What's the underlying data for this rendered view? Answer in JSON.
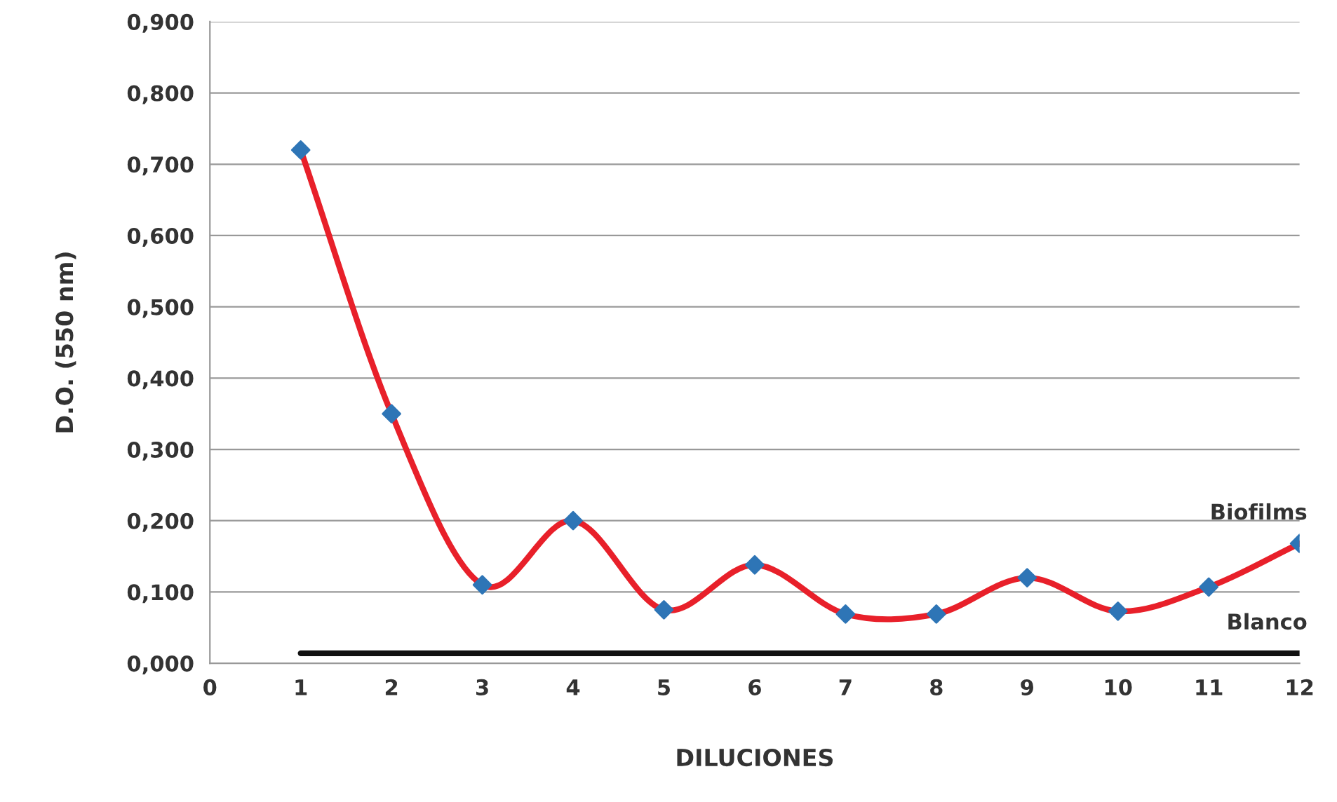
{
  "chart_data": {
    "type": "line",
    "xlabel": "DILUCIONES",
    "ylabel": "D.O. (550 nm)",
    "x": [
      1,
      2,
      3,
      4,
      5,
      6,
      7,
      8,
      9,
      10,
      11,
      12
    ],
    "series": [
      {
        "name": "Biofilms",
        "color": "#e8202a",
        "marker": "diamond",
        "colors": [
          "#2e75b6",
          "#2e75b6",
          "#2e75b6",
          "#2e75b6",
          "#2e75b6",
          "#2e75b6",
          "#2e75b6",
          "#2e75b6",
          "#2e75b6",
          "#2e75b6",
          "#2e75b6",
          "#2e75b6"
        ],
        "values": [
          0.72,
          0.35,
          0.11,
          0.2,
          0.075,
          0.138,
          0.069,
          0.069,
          0.12,
          0.073,
          0.107,
          0.168
        ]
      },
      {
        "name": "Blanco",
        "color": "#111111",
        "marker": "none",
        "x": [
          1,
          12
        ],
        "values": [
          0.014,
          0.014
        ]
      }
    ],
    "xlim": [
      0,
      12
    ],
    "xticks": [
      0,
      1,
      2,
      3,
      4,
      5,
      6,
      7,
      8,
      9,
      10,
      11,
      12
    ],
    "ylim": [
      0,
      0.9
    ],
    "yticks": [
      {
        "value": 0,
        "label": "0,000"
      },
      {
        "value": 0.1,
        "label": "0,100"
      },
      {
        "value": 0.2,
        "label": "0,200"
      },
      {
        "value": 0.3,
        "label": "0,300"
      },
      {
        "value": 0.4,
        "label": "0,400"
      },
      {
        "value": 0.5,
        "label": "0,500"
      },
      {
        "value": 0.6,
        "label": "0,600"
      },
      {
        "value": 0.7,
        "label": "0,700"
      },
      {
        "value": 0.8,
        "label": "0,800"
      },
      {
        "value": 0.9,
        "label": "0,900"
      }
    ],
    "grid": "y",
    "line_style": "solid",
    "legend": false
  }
}
